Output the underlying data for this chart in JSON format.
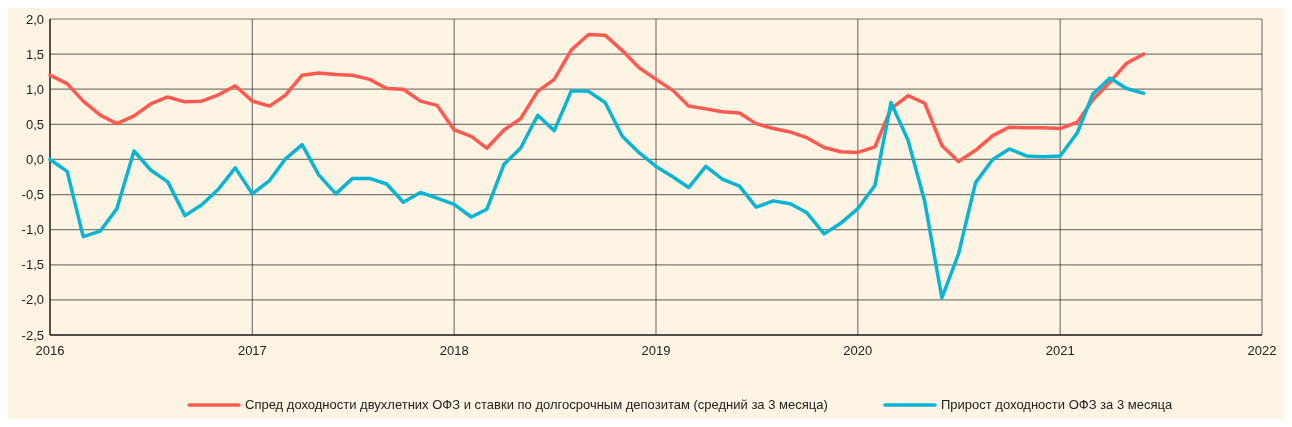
{
  "chart_data": {
    "type": "line",
    "x": [
      "2016-01",
      "2016-02",
      "2016-03",
      "2016-04",
      "2016-05",
      "2016-06",
      "2016-07",
      "2016-08",
      "2016-09",
      "2016-10",
      "2016-11",
      "2016-12",
      "2017-01",
      "2017-02",
      "2017-03",
      "2017-04",
      "2017-05",
      "2017-06",
      "2017-07",
      "2017-08",
      "2017-09",
      "2017-10",
      "2017-11",
      "2017-12",
      "2018-01",
      "2018-02",
      "2018-03",
      "2018-04",
      "2018-05",
      "2018-06",
      "2018-07",
      "2018-08",
      "2018-09",
      "2018-10",
      "2018-11",
      "2018-12",
      "2019-01",
      "2019-02",
      "2019-03",
      "2019-04",
      "2019-05",
      "2019-06",
      "2019-07",
      "2019-08",
      "2019-09",
      "2019-10",
      "2019-11",
      "2019-12",
      "2020-01",
      "2020-02",
      "2020-03",
      "2020-04",
      "2020-05",
      "2020-06",
      "2020-07",
      "2020-08",
      "2020-09",
      "2020-10",
      "2020-11",
      "2020-12",
      "2021-01",
      "2021-02",
      "2021-03",
      "2021-04",
      "2021-05",
      "2021-06"
    ],
    "series": [
      {
        "name": "Спред доходности двухлетних ОФЗ и ставки по долгосрочным депозитам (средний за 3 месяца)",
        "color": "#ff5a50",
        "values": [
          1.2,
          1.08,
          0.83,
          0.63,
          0.51,
          0.62,
          0.79,
          0.89,
          0.82,
          0.83,
          0.92,
          1.05,
          0.83,
          0.76,
          0.91,
          1.2,
          1.23,
          1.21,
          1.2,
          1.14,
          1.01,
          1.0,
          0.83,
          0.77,
          0.42,
          0.33,
          0.16,
          0.42,
          0.58,
          0.97,
          1.14,
          1.56,
          1.78,
          1.77,
          1.55,
          1.31,
          1.14,
          0.98,
          0.76,
          0.72,
          0.68,
          0.66,
          0.51,
          0.44,
          0.39,
          0.31,
          0.17,
          0.11,
          0.1,
          0.18,
          0.72,
          0.91,
          0.8,
          0.2,
          -0.03,
          0.13,
          0.34,
          0.46,
          0.45,
          0.45,
          0.44,
          0.53,
          0.85,
          1.1,
          1.37,
          1.5
        ]
      },
      {
        "name": "Прирост доходности ОФЗ за 3 месяца",
        "color": "#0ab4d4",
        "values": [
          0.0,
          -0.17,
          -1.1,
          -1.02,
          -0.7,
          0.12,
          -0.15,
          -0.32,
          -0.8,
          -0.65,
          -0.42,
          -0.12,
          -0.49,
          -0.3,
          0.0,
          0.21,
          -0.22,
          -0.49,
          -0.27,
          -0.27,
          -0.35,
          -0.61,
          -0.47,
          -0.55,
          -0.64,
          -0.82,
          -0.71,
          -0.07,
          0.16,
          0.63,
          0.41,
          0.98,
          0.97,
          0.81,
          0.33,
          0.1,
          -0.1,
          -0.25,
          -0.4,
          -0.1,
          -0.28,
          -0.38,
          -0.68,
          -0.59,
          -0.63,
          -0.76,
          -1.06,
          -0.91,
          -0.7,
          -0.37,
          0.81,
          0.27,
          -0.6,
          -1.97,
          -1.35,
          -0.33,
          0.0,
          0.15,
          0.05,
          0.04,
          0.05,
          0.38,
          0.93,
          1.16,
          1.01,
          0.94
        ]
      }
    ],
    "xlim": [
      "2016-01",
      "2022-01"
    ],
    "xticks": [
      {
        "value": "2016-01",
        "label": "2016"
      },
      {
        "value": "2017-01",
        "label": "2017"
      },
      {
        "value": "2018-01",
        "label": "2018"
      },
      {
        "value": "2019-01",
        "label": "2019"
      },
      {
        "value": "2020-01",
        "label": "2020"
      },
      {
        "value": "2021-01",
        "label": "2021"
      },
      {
        "value": "2022-01",
        "label": "2022"
      }
    ],
    "ylim": [
      -2.5,
      2.0
    ],
    "yticks": [
      {
        "value": -2.5,
        "label": "-2,5"
      },
      {
        "value": -2.0,
        "label": "-2,0"
      },
      {
        "value": -1.5,
        "label": "-1,5"
      },
      {
        "value": -1.0,
        "label": "-1,0"
      },
      {
        "value": -0.5,
        "label": "-0,5"
      },
      {
        "value": 0,
        "label": "0,0"
      },
      {
        "value": 0.5,
        "label": "0,5"
      },
      {
        "value": 1.0,
        "label": "1,0"
      },
      {
        "value": 1.5,
        "label": "1,5"
      },
      {
        "value": 2.0,
        "label": "2,0"
      }
    ],
    "grid": true,
    "legend": "bottom",
    "marker": "none",
    "line_style": "solid"
  }
}
